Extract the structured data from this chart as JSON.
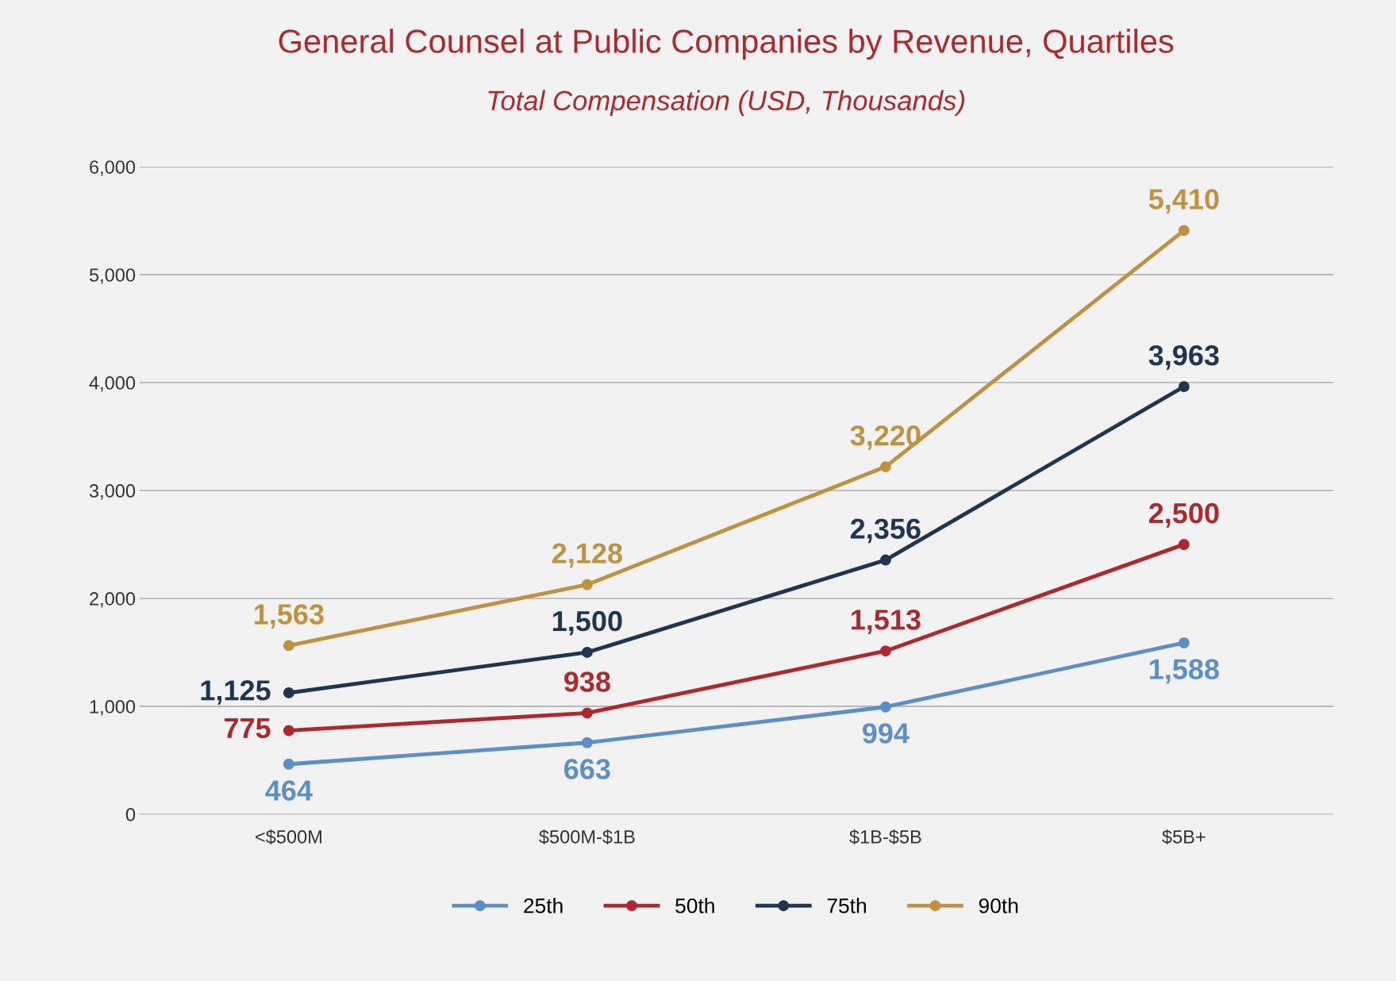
{
  "chart_data": {
    "type": "line",
    "title": "General Counsel at Public Companies by Revenue, Quartiles",
    "subtitle": "Total Compensation (USD, Thousands)",
    "categories": [
      "<$500M",
      "$500M-$1B",
      "$1B-$5B",
      "$5B+"
    ],
    "series": [
      {
        "name": "25th",
        "color": "#5b8fc7",
        "values": [
          464,
          663,
          994,
          1588
        ],
        "value_labels": [
          "464",
          "663",
          "994",
          "1,588"
        ]
      },
      {
        "name": "50th",
        "color": "#b0282c",
        "values": [
          775,
          938,
          1513,
          2500
        ],
        "value_labels": [
          "775",
          "938",
          "1,513",
          "2,500"
        ]
      },
      {
        "name": "75th",
        "color": "#1f3550",
        "values": [
          1125,
          1500,
          2356,
          3963
        ],
        "value_labels": [
          "1,125",
          "1,500",
          "2,356",
          "3,963"
        ]
      },
      {
        "name": "90th",
        "color": "#c0913e",
        "values": [
          1563,
          2128,
          3220,
          5410
        ],
        "value_labels": [
          "1,563",
          "2,128",
          "3,220",
          "5,410"
        ]
      }
    ],
    "ylim": [
      0,
      6000
    ],
    "yticks": [
      0,
      {
        "value": 1000,
        "label": "1,000"
      },
      {
        "value": 2000,
        "label": "2,000"
      },
      {
        "value": 3000,
        "label": "3,000"
      },
      {
        "value": 4000,
        "label": "4,000"
      },
      {
        "value": 5000,
        "label": "5,000"
      },
      {
        "value": 6000,
        "label": "6,000"
      }
    ],
    "grid": "y",
    "legend": "bottom",
    "marker": "circle",
    "line_style": "solid"
  }
}
